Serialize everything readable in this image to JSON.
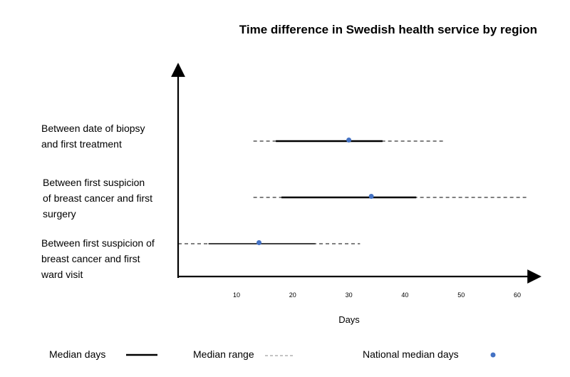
{
  "chart_data": {
    "type": "range",
    "title": "Time difference in Swedish health service by region",
    "xlabel": "Days",
    "x_ticks": [
      10,
      20,
      30,
      40,
      50,
      60
    ],
    "categories": [
      {
        "label_lines": [
          "Between date of biopsy",
          "and first treatment"
        ],
        "median_range": [
          13,
          47
        ],
        "median_days": [
          17,
          36
        ],
        "national_median": 30
      },
      {
        "label_lines": [
          "Between first suspicion",
          "of breast cancer and first",
          "surgery"
        ],
        "median_range": [
          13,
          62
        ],
        "median_days": [
          18,
          42
        ],
        "national_median": 34
      },
      {
        "label_lines": [
          "Between first suspicion of",
          "breast cancer and first",
          "ward visit"
        ],
        "median_range": [
          0,
          32
        ],
        "median_days": [
          5,
          24
        ],
        "national_median": 14
      }
    ],
    "legend": {
      "median_days": "Median days",
      "median_range": "Median range",
      "national_median": "National median days"
    },
    "colors": {
      "line": "#000000",
      "dashed": "#000000",
      "point": "#4472c4"
    }
  }
}
